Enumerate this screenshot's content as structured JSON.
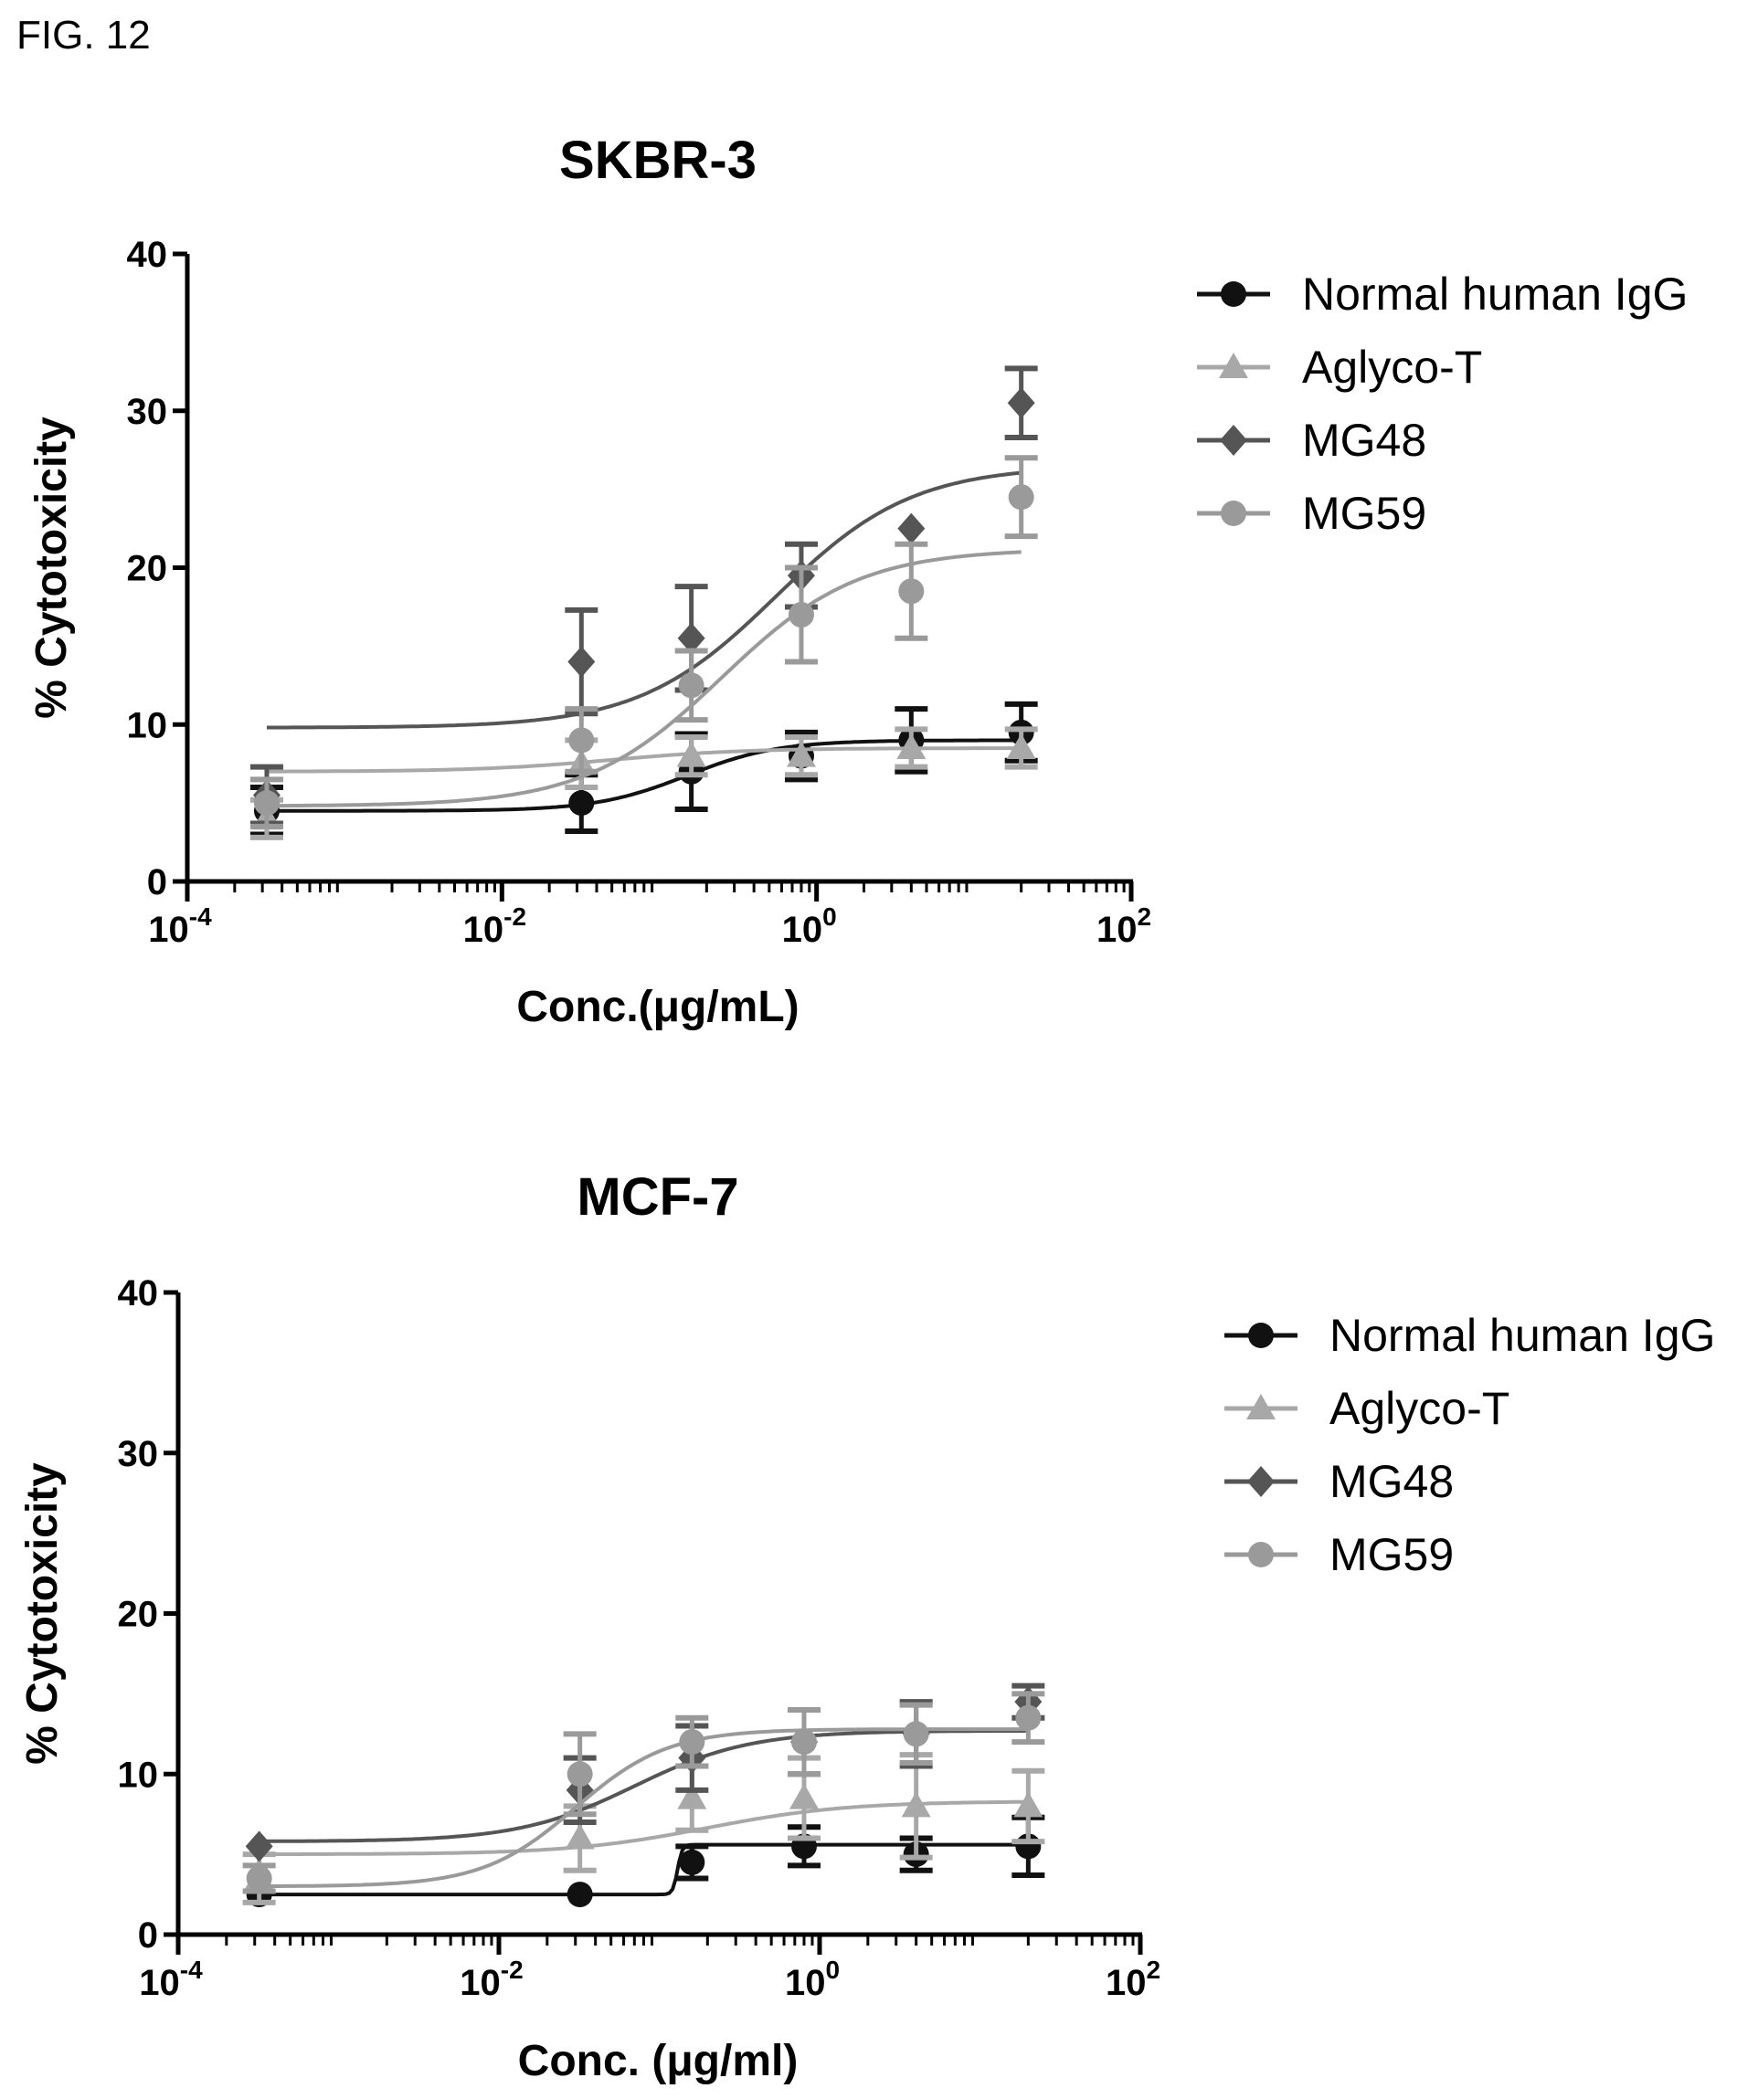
{
  "figure_label": "FIG. 12",
  "colors": {
    "Normal human IgG": "#111111",
    "Aglyco-T": "#a8a8a8",
    "MG48": "#555555",
    "MG59": "#9a9a9a"
  },
  "chart_data": [
    {
      "type": "scatter",
      "title": "SKBR-3",
      "xlabel": "Conc.(μg/mL)",
      "ylabel": "% Cytotoxicity",
      "xscale": "log",
      "xlim": [
        0.0001,
        100
      ],
      "ylim": [
        0,
        40
      ],
      "yticks": [
        "0",
        "10",
        "20",
        "30",
        "40"
      ],
      "xticks": [
        {
          "base": "10",
          "exp": "-4"
        },
        {
          "base": "10",
          "exp": "-2"
        },
        {
          "base": "10",
          "exp": "0"
        },
        {
          "base": "10",
          "exp": "2"
        }
      ],
      "legend_position": "right",
      "x": [
        0.00032,
        0.032,
        0.16,
        0.8,
        4,
        20
      ],
      "series": [
        {
          "name": "Normal human IgG",
          "marker": "circle",
          "values": [
            4.5,
            5.0,
            7.0,
            8.0,
            9.0,
            9.5
          ],
          "errors": [
            1.5,
            1.8,
            2.4,
            1.5,
            2.0,
            1.8
          ],
          "fit": {
            "bottom": 4.5,
            "top": 9.0,
            "ec50": 0.15,
            "hill": 1.5
          }
        },
        {
          "name": "Aglyco-T",
          "marker": "triangle",
          "values": [
            4.0,
            7.5,
            8.0,
            8.0,
            8.5,
            8.5
          ],
          "errors": [
            1.2,
            1.5,
            1.2,
            1.2,
            1.2,
            1.2
          ],
          "fit": {
            "bottom": 7.0,
            "top": 8.5,
            "ec50": 0.05,
            "hill": 1.0
          }
        },
        {
          "name": "MG48",
          "marker": "diamond",
          "values": [
            5.5,
            14.0,
            15.5,
            19.5,
            22.5,
            30.5
          ],
          "errors": [
            1.8,
            3.3,
            3.3,
            2.0,
            0,
            2.2
          ],
          "fit": {
            "bottom": 9.8,
            "top": 26.5,
            "ec50": 0.55,
            "hill": 1.0
          }
        },
        {
          "name": "MG59",
          "marker": "circle",
          "values": [
            5.0,
            9.0,
            12.5,
            17.0,
            18.5,
            24.5
          ],
          "errors": [
            1.5,
            2.0,
            2.2,
            3.0,
            3.0,
            2.5
          ],
          "fit": {
            "bottom": 4.8,
            "top": 21.2,
            "ec50": 0.25,
            "hill": 1.0
          }
        }
      ]
    },
    {
      "type": "scatter",
      "title": "MCF-7",
      "xlabel": "Conc. (μg/ml)",
      "ylabel": "% Cytotoxicity",
      "xscale": "log",
      "xlim": [
        0.0001,
        100
      ],
      "ylim": [
        0,
        40
      ],
      "yticks": [
        "0",
        "10",
        "20",
        "30",
        "40"
      ],
      "xticks": [
        {
          "base": "10",
          "exp": "-4"
        },
        {
          "base": "10",
          "exp": "-2"
        },
        {
          "base": "10",
          "exp": "0"
        },
        {
          "base": "10",
          "exp": "2"
        }
      ],
      "legend_position": "right",
      "x": [
        0.00032,
        0.032,
        0.16,
        0.8,
        4,
        20
      ],
      "series": [
        {
          "name": "Normal human IgG",
          "marker": "circle",
          "values": [
            2.5,
            2.5,
            4.5,
            5.5,
            5.0,
            5.5
          ],
          "errors": [
            0,
            0,
            1.0,
            1.2,
            1.0,
            1.8
          ],
          "fit": {
            "bottom": 2.5,
            "top": 5.6,
            "ec50": 0.13,
            "hill": 30
          }
        },
        {
          "name": "Aglyco-T",
          "marker": "triangle",
          "values": [
            3.5,
            6.0,
            8.5,
            8.5,
            8.0,
            8.0
          ],
          "errors": [
            1.5,
            2.0,
            2.0,
            2.5,
            3.2,
            2.2
          ],
          "fit": {
            "bottom": 5.0,
            "top": 8.3,
            "ec50": 0.2,
            "hill": 1.0
          }
        },
        {
          "name": "MG48",
          "marker": "diamond",
          "values": [
            5.5,
            9.0,
            11.0,
            12.0,
            12.5,
            14.5
          ],
          "errors": [
            0,
            2.0,
            2.0,
            2.0,
            2.0,
            1.0
          ],
          "fit": {
            "bottom": 5.8,
            "top": 12.7,
            "ec50": 0.07,
            "hill": 1.2
          }
        },
        {
          "name": "MG59",
          "marker": "circle",
          "values": [
            3.5,
            10.0,
            12.0,
            12.0,
            12.5,
            13.5
          ],
          "errors": [
            0.8,
            2.5,
            1.5,
            2.0,
            1.8,
            1.5
          ],
          "fit": {
            "bottom": 3.0,
            "top": 12.8,
            "ec50": 0.03,
            "hill": 1.5
          }
        }
      ]
    }
  ]
}
